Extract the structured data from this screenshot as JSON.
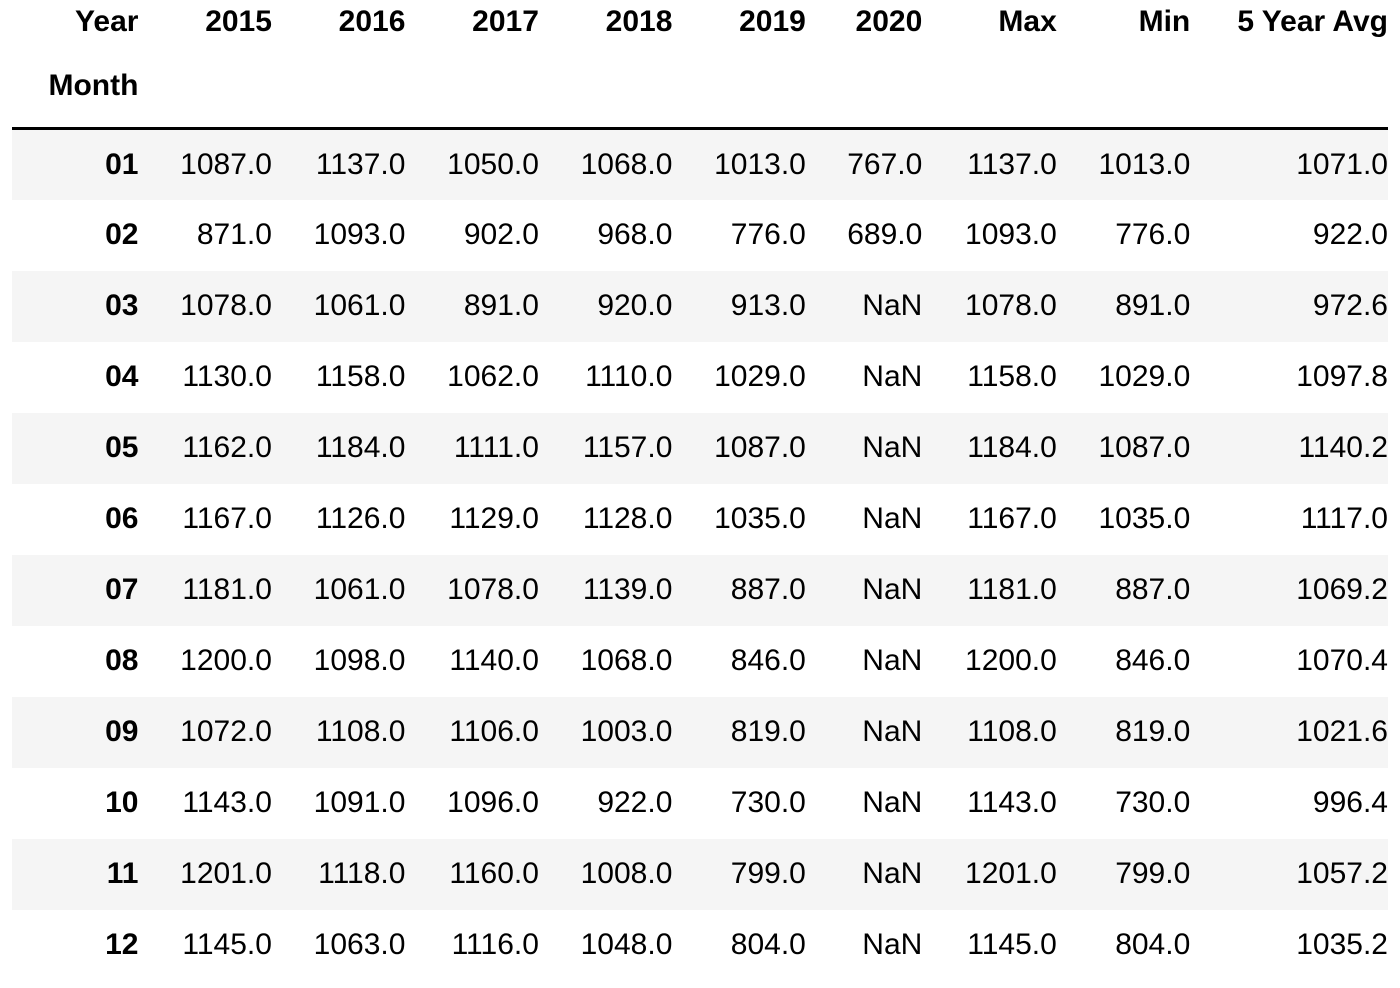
{
  "table": {
    "columns_label": "Year",
    "index_label": "Month",
    "columns": [
      "2015",
      "2016",
      "2017",
      "2018",
      "2019",
      "2020",
      "Max",
      "Min",
      "5 Year Avg"
    ],
    "rows": [
      {
        "month": "01",
        "values": [
          "1087.0",
          "1137.0",
          "1050.0",
          "1068.0",
          "1013.0",
          "767.0",
          "1137.0",
          "1013.0",
          "1071.0"
        ]
      },
      {
        "month": "02",
        "values": [
          "871.0",
          "1093.0",
          "902.0",
          "968.0",
          "776.0",
          "689.0",
          "1093.0",
          "776.0",
          "922.0"
        ]
      },
      {
        "month": "03",
        "values": [
          "1078.0",
          "1061.0",
          "891.0",
          "920.0",
          "913.0",
          "NaN",
          "1078.0",
          "891.0",
          "972.6"
        ]
      },
      {
        "month": "04",
        "values": [
          "1130.0",
          "1158.0",
          "1062.0",
          "1110.0",
          "1029.0",
          "NaN",
          "1158.0",
          "1029.0",
          "1097.8"
        ]
      },
      {
        "month": "05",
        "values": [
          "1162.0",
          "1184.0",
          "1111.0",
          "1157.0",
          "1087.0",
          "NaN",
          "1184.0",
          "1087.0",
          "1140.2"
        ]
      },
      {
        "month": "06",
        "values": [
          "1167.0",
          "1126.0",
          "1129.0",
          "1128.0",
          "1035.0",
          "NaN",
          "1167.0",
          "1035.0",
          "1117.0"
        ]
      },
      {
        "month": "07",
        "values": [
          "1181.0",
          "1061.0",
          "1078.0",
          "1139.0",
          "887.0",
          "NaN",
          "1181.0",
          "887.0",
          "1069.2"
        ]
      },
      {
        "month": "08",
        "values": [
          "1200.0",
          "1098.0",
          "1140.0",
          "1068.0",
          "846.0",
          "NaN",
          "1200.0",
          "846.0",
          "1070.4"
        ]
      },
      {
        "month": "09",
        "values": [
          "1072.0",
          "1108.0",
          "1106.0",
          "1003.0",
          "819.0",
          "NaN",
          "1108.0",
          "819.0",
          "1021.6"
        ]
      },
      {
        "month": "10",
        "values": [
          "1143.0",
          "1091.0",
          "1096.0",
          "922.0",
          "730.0",
          "NaN",
          "1143.0",
          "730.0",
          "996.4"
        ]
      },
      {
        "month": "11",
        "values": [
          "1201.0",
          "1118.0",
          "1160.0",
          "1008.0",
          "799.0",
          "NaN",
          "1201.0",
          "799.0",
          "1057.2"
        ]
      },
      {
        "month": "12",
        "values": [
          "1145.0",
          "1063.0",
          "1116.0",
          "1048.0",
          "804.0",
          "NaN",
          "1145.0",
          "804.0",
          "1035.2"
        ]
      }
    ]
  },
  "colors": {
    "stripe": "#f5f5f5",
    "header_rule": "#000000",
    "text": "#000000"
  }
}
